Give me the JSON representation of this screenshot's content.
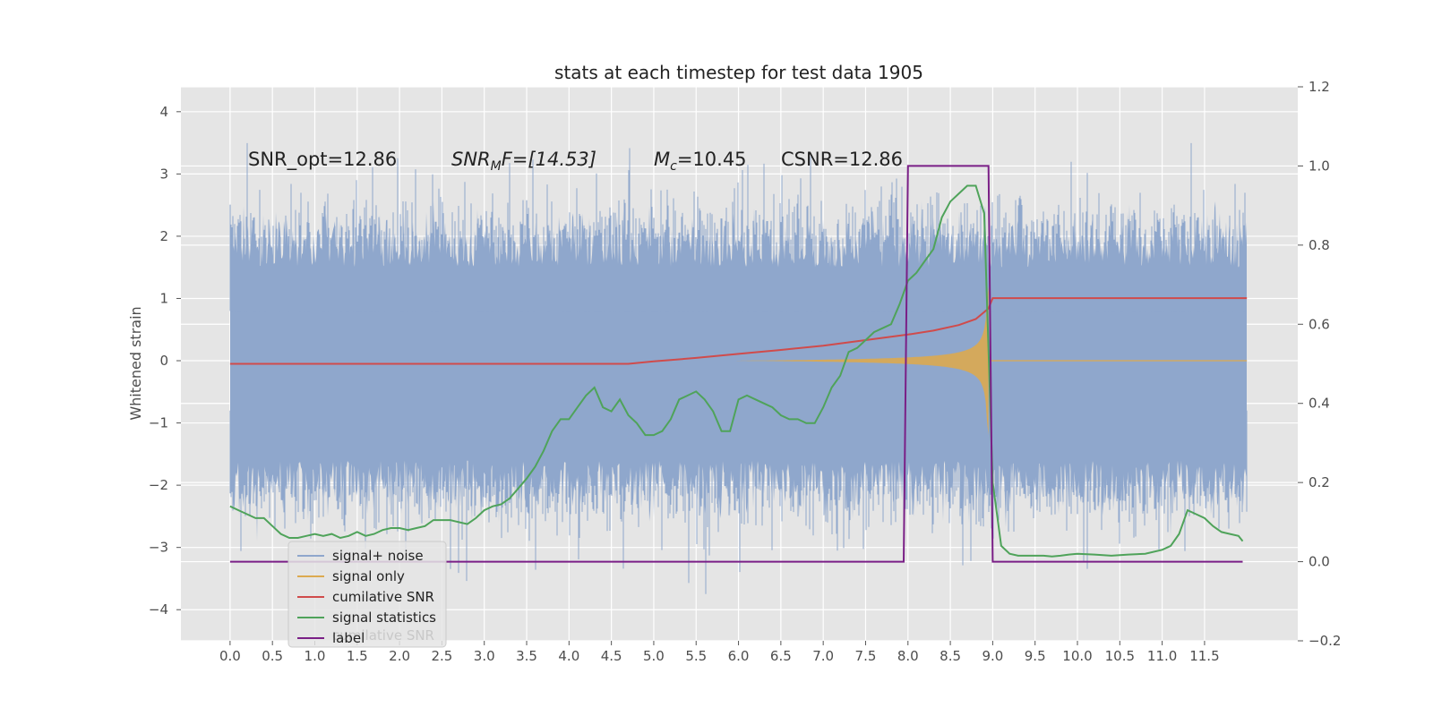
{
  "chart_data": {
    "type": "line",
    "title": "stats at each timestep for test data 1905",
    "ylabel": "Whitened strain",
    "xlabel": "",
    "xlim": [
      -0.58,
      12.6
    ],
    "ylim": [
      -4.5,
      4.4
    ],
    "y2lim": [
      -0.2,
      1.2
    ],
    "grid": true,
    "legend_position": "lower-left",
    "x_ticks": [
      "0.0",
      "0.5",
      "1.0",
      "1.5",
      "2.0",
      "2.5",
      "3.0",
      "3.5",
      "4.0",
      "4.5",
      "5.0",
      "5.5",
      "6.0",
      "6.5",
      "7.0",
      "7.5",
      "8.0",
      "8.5",
      "9.0",
      "9.5",
      "10.0",
      "10.5",
      "11.0",
      "11.5"
    ],
    "y_ticks": [
      "4",
      "3",
      "2",
      "1",
      "0",
      "−1",
      "−2",
      "−3",
      "−4"
    ],
    "y2_ticks": [
      "1.2",
      "1.0",
      "0.8",
      "0.6",
      "0.4",
      "0.2",
      "0.0",
      "−0.2"
    ],
    "annotations": {
      "snr_opt": "SNR_opt=12.86",
      "snr_mf_main": "SNR",
      "snr_mf_sub": "M",
      "snr_mf_rest": "F=[14.53]",
      "mc_main": "M",
      "mc_sub": "c",
      "mc_rest": "=10.45",
      "csnr": "CSNR=12.86"
    },
    "legend_ghost_text": "cumilative SNR",
    "series": [
      {
        "name": "signal+ noise",
        "color": "#8fa7cc",
        "axis": "left",
        "description_values": {
          "x_range": [
            0.0,
            12.0
          ],
          "typical_envelope": [
            -2.3,
            2.6
          ],
          "noise_seed": 1905
        }
      },
      {
        "name": "signal only",
        "color": "#dcaa50",
        "axis": "left",
        "chirp": {
          "start": 4.6,
          "merger": 8.95,
          "max_amplitude": 1.5
        }
      },
      {
        "name": "cumilative SNR",
        "color": "#d04b4b",
        "axis": "right",
        "x": [
          0.0,
          4.7,
          5.0,
          5.5,
          6.0,
          6.5,
          7.0,
          7.5,
          8.0,
          8.3,
          8.6,
          8.8,
          8.95,
          9.0,
          12.0
        ],
        "y": [
          0.5,
          0.5,
          0.506,
          0.515,
          0.525,
          0.535,
          0.546,
          0.56,
          0.574,
          0.584,
          0.598,
          0.613,
          0.64,
          0.666,
          0.666
        ]
      },
      {
        "name": "signal statistics",
        "color": "#4fa35a",
        "axis": "right",
        "x": [
          0.0,
          0.1,
          0.2,
          0.3,
          0.4,
          0.5,
          0.6,
          0.7,
          0.8,
          0.9,
          1.0,
          1.1,
          1.2,
          1.3,
          1.4,
          1.5,
          1.6,
          1.7,
          1.8,
          1.9,
          2.0,
          2.1,
          2.2,
          2.3,
          2.4,
          2.5,
          2.6,
          2.7,
          2.8,
          2.9,
          3.0,
          3.1,
          3.2,
          3.3,
          3.4,
          3.5,
          3.6,
          3.7,
          3.8,
          3.9,
          4.0,
          4.1,
          4.2,
          4.3,
          4.4,
          4.5,
          4.6,
          4.7,
          4.8,
          4.9,
          5.0,
          5.1,
          5.2,
          5.3,
          5.4,
          5.5,
          5.6,
          5.7,
          5.8,
          5.9,
          6.0,
          6.1,
          6.2,
          6.3,
          6.4,
          6.5,
          6.6,
          6.7,
          6.8,
          6.9,
          7.0,
          7.1,
          7.2,
          7.3,
          7.4,
          7.5,
          7.6,
          7.7,
          7.8,
          7.9,
          8.0,
          8.1,
          8.2,
          8.3,
          8.4,
          8.5,
          8.6,
          8.7,
          8.8,
          8.9,
          9.0,
          9.1,
          9.2,
          9.3,
          9.4,
          9.5,
          9.6,
          9.7,
          9.8,
          9.9,
          10.0,
          10.2,
          10.4,
          10.6,
          10.8,
          11.0,
          11.1,
          11.2,
          11.3,
          11.4,
          11.5,
          11.6,
          11.7,
          11.8,
          11.9
        ],
        "y": [
          0.14,
          0.13,
          0.12,
          0.11,
          0.11,
          0.09,
          0.07,
          0.06,
          0.06,
          0.065,
          0.07,
          0.065,
          0.07,
          0.06,
          0.065,
          0.075,
          0.065,
          0.07,
          0.08,
          0.085,
          0.085,
          0.08,
          0.085,
          0.09,
          0.105,
          0.105,
          0.105,
          0.1,
          0.095,
          0.11,
          0.13,
          0.14,
          0.145,
          0.16,
          0.185,
          0.21,
          0.24,
          0.28,
          0.33,
          0.36,
          0.36,
          0.39,
          0.42,
          0.44,
          0.39,
          0.38,
          0.41,
          0.37,
          0.35,
          0.32,
          0.32,
          0.33,
          0.36,
          0.41,
          0.42,
          0.43,
          0.41,
          0.38,
          0.33,
          0.33,
          0.41,
          0.42,
          0.41,
          0.4,
          0.39,
          0.37,
          0.36,
          0.36,
          0.35,
          0.35,
          0.39,
          0.44,
          0.47,
          0.53,
          0.54,
          0.56,
          0.58,
          0.59,
          0.6,
          0.65,
          0.71,
          0.73,
          0.76,
          0.79,
          0.87,
          0.91,
          0.93,
          0.95,
          0.95,
          0.88,
          0.2,
          0.04,
          0.02,
          0.015,
          0.015,
          0.015,
          0.015,
          0.013,
          0.015,
          0.018,
          0.02,
          0.018,
          0.015,
          0.018,
          0.02,
          0.03,
          0.04,
          0.07,
          0.13,
          0.12,
          0.11,
          0.09,
          0.075,
          0.07,
          0.065
        ],
        "end_value": 0.052
      },
      {
        "name": "label",
        "color": "#7a1f86",
        "axis": "right",
        "x": [
          0.0,
          7.95,
          8.0,
          8.95,
          9.0,
          11.95
        ],
        "y": [
          0.0,
          0.0,
          1.0,
          1.0,
          0.0,
          0.0
        ]
      }
    ]
  }
}
